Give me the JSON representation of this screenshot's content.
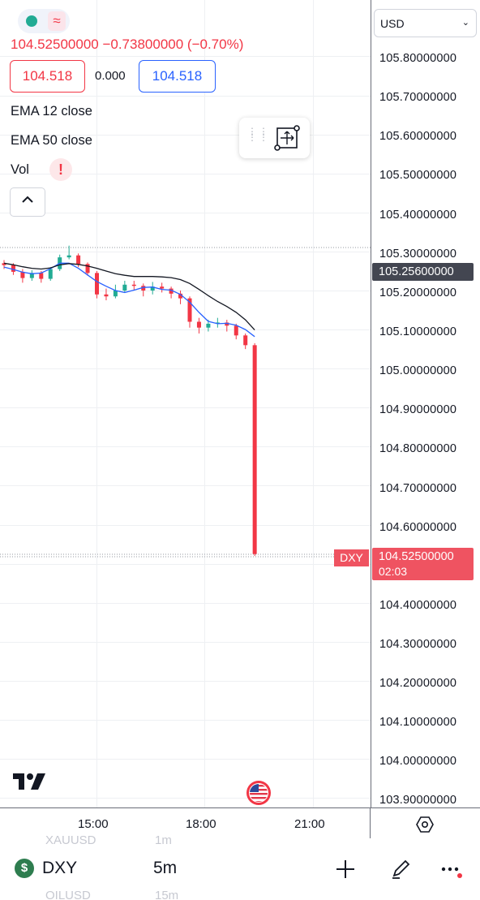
{
  "header": {
    "price_change": "104.52500000 −0.73800000 (−0.70%)",
    "sell_price": "104.518",
    "spread": "0.000",
    "buy_price": "104.518"
  },
  "indicators": {
    "ema12": "EMA 12 close",
    "ema50": "EMA 50 close",
    "vol": "Vol",
    "vol_alert": "!"
  },
  "status": {
    "market_icon": "market-status-dot",
    "wave_icon": "≈"
  },
  "currency": {
    "label": "USD"
  },
  "price_axis": {
    "labels": [
      "105.80000000",
      "105.70000000",
      "105.60000000",
      "105.50000000",
      "105.40000000",
      "105.30000000",
      "105.20000000",
      "105.10000000",
      "105.00000000",
      "104.90000000",
      "104.80000000",
      "104.70000000",
      "104.60000000",
      "104.40000000",
      "104.30000000",
      "104.20000000",
      "104.10000000",
      "104.00000000",
      "103.90000000"
    ],
    "ref_price": "105.25600000",
    "last_price": "104.52500000",
    "countdown": "02:03",
    "symbol_tag": "DXY"
  },
  "time_axis": {
    "labels": [
      "15:00",
      "18:00",
      "21:00"
    ]
  },
  "bottom_bar": {
    "symbol": "DXY",
    "symbol_icon": "$",
    "interval": "5m",
    "ghost_symbol_above": "XAUUSD",
    "ghost_interval_above": "1m",
    "ghost_symbol_below": "OILUSD",
    "ghost_interval_below": "15m"
  },
  "colors": {
    "up": "#22ab94",
    "down": "#f23645",
    "ema12": "#2962ff",
    "ema50": "#131722",
    "last_price_tag": "#ef5361"
  },
  "chart_data": {
    "type": "candlestick",
    "symbol": "DXY",
    "interval": "5m",
    "ylim": [
      103.88,
      105.86
    ],
    "series": [
      {
        "name": "EMA 12 close",
        "values": [
          105.26,
          105.254,
          105.247,
          105.243,
          105.245,
          105.256,
          105.27,
          105.27,
          105.257,
          105.24,
          105.223,
          105.211,
          105.2,
          105.195,
          105.201,
          105.208,
          105.209,
          105.203,
          105.201,
          105.19,
          105.17,
          105.144,
          105.121,
          105.115,
          105.116,
          105.111,
          105.1,
          105.082
        ]
      },
      {
        "name": "EMA 50 close",
        "values": [
          105.27,
          105.266,
          105.261,
          105.257,
          105.255,
          105.258,
          105.266,
          105.269,
          105.267,
          105.263,
          105.257,
          105.25,
          105.243,
          105.239,
          105.236,
          105.236,
          105.236,
          105.235,
          105.233,
          105.228,
          105.218,
          105.203,
          105.187,
          105.172,
          105.159,
          105.144,
          105.125,
          105.099
        ]
      }
    ],
    "x_ticks": [
      "15:00",
      "18:00",
      "21:00"
    ],
    "last_price": 104.525,
    "candles": [
      [
        105.27,
        105.265,
        105.278,
        105.255
      ],
      [
        105.265,
        105.248,
        105.27,
        105.24
      ],
      [
        105.248,
        105.232,
        105.255,
        105.22
      ],
      [
        105.232,
        105.245,
        105.252,
        105.225
      ],
      [
        105.245,
        105.23,
        105.25,
        105.22
      ],
      [
        105.23,
        105.255,
        105.26,
        105.225
      ],
      [
        105.255,
        105.285,
        105.292,
        105.25
      ],
      [
        105.285,
        105.29,
        105.315,
        105.28
      ],
      [
        105.29,
        105.268,
        105.295,
        105.26
      ],
      [
        105.268,
        105.245,
        105.272,
        105.238
      ],
      [
        105.245,
        105.19,
        105.25,
        105.18
      ],
      [
        105.19,
        105.185,
        105.205,
        105.175
      ],
      [
        105.185,
        105.2,
        105.215,
        105.18
      ],
      [
        105.2,
        105.215,
        105.225,
        105.195
      ],
      [
        105.215,
        105.212,
        105.225,
        105.2
      ],
      [
        105.212,
        105.2,
        105.218,
        105.185
      ],
      [
        105.2,
        105.21,
        105.222,
        105.19
      ],
      [
        105.21,
        105.205,
        105.22,
        105.195
      ],
      [
        105.205,
        105.192,
        105.21,
        105.18
      ],
      [
        105.192,
        105.18,
        105.2,
        105.165
      ],
      [
        105.18,
        105.12,
        105.185,
        105.105
      ],
      [
        105.12,
        105.105,
        105.13,
        105.09
      ],
      [
        105.105,
        105.115,
        105.125,
        105.095
      ],
      [
        105.115,
        105.118,
        105.13,
        105.105
      ],
      [
        105.118,
        105.11,
        105.125,
        105.095
      ],
      [
        105.11,
        105.085,
        105.115,
        105.075
      ],
      [
        105.085,
        105.06,
        105.09,
        105.05
      ],
      [
        105.06,
        104.525,
        105.065,
        104.52
      ]
    ]
  }
}
